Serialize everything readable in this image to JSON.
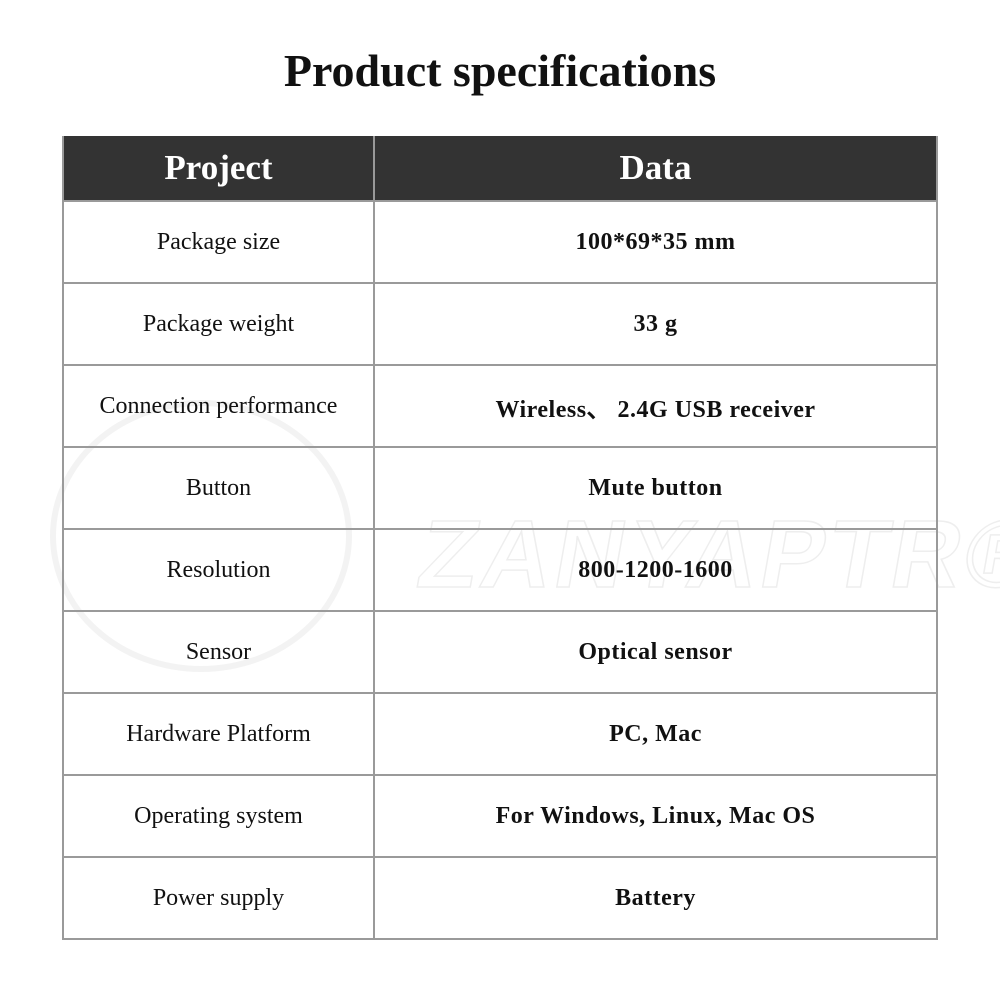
{
  "title": "Product specifications",
  "watermark": "ZANYAPTR®",
  "table": {
    "headers": [
      "Project",
      "Data"
    ],
    "rows": [
      {
        "project": "Package size",
        "data": "100*69*35 mm"
      },
      {
        "project": "Package weight",
        "data": "33 g"
      },
      {
        "project": "Connection performance",
        "data": "Wireless、 2.4G USB receiver"
      },
      {
        "project": "Button",
        "data": "Mute button"
      },
      {
        "project": "Resolution",
        "data": "800-1200-1600"
      },
      {
        "project": "Sensor",
        "data": "Optical sensor"
      },
      {
        "project": "Hardware Platform",
        "data": "PC, Mac"
      },
      {
        "project": "Operating system",
        "data": "For Windows, Linux, Mac OS"
      },
      {
        "project": "Power supply",
        "data": "Battery"
      }
    ]
  },
  "colors": {
    "header_bg": "#333333",
    "header_text": "#ffffff",
    "border": "#9a9a9a"
  }
}
